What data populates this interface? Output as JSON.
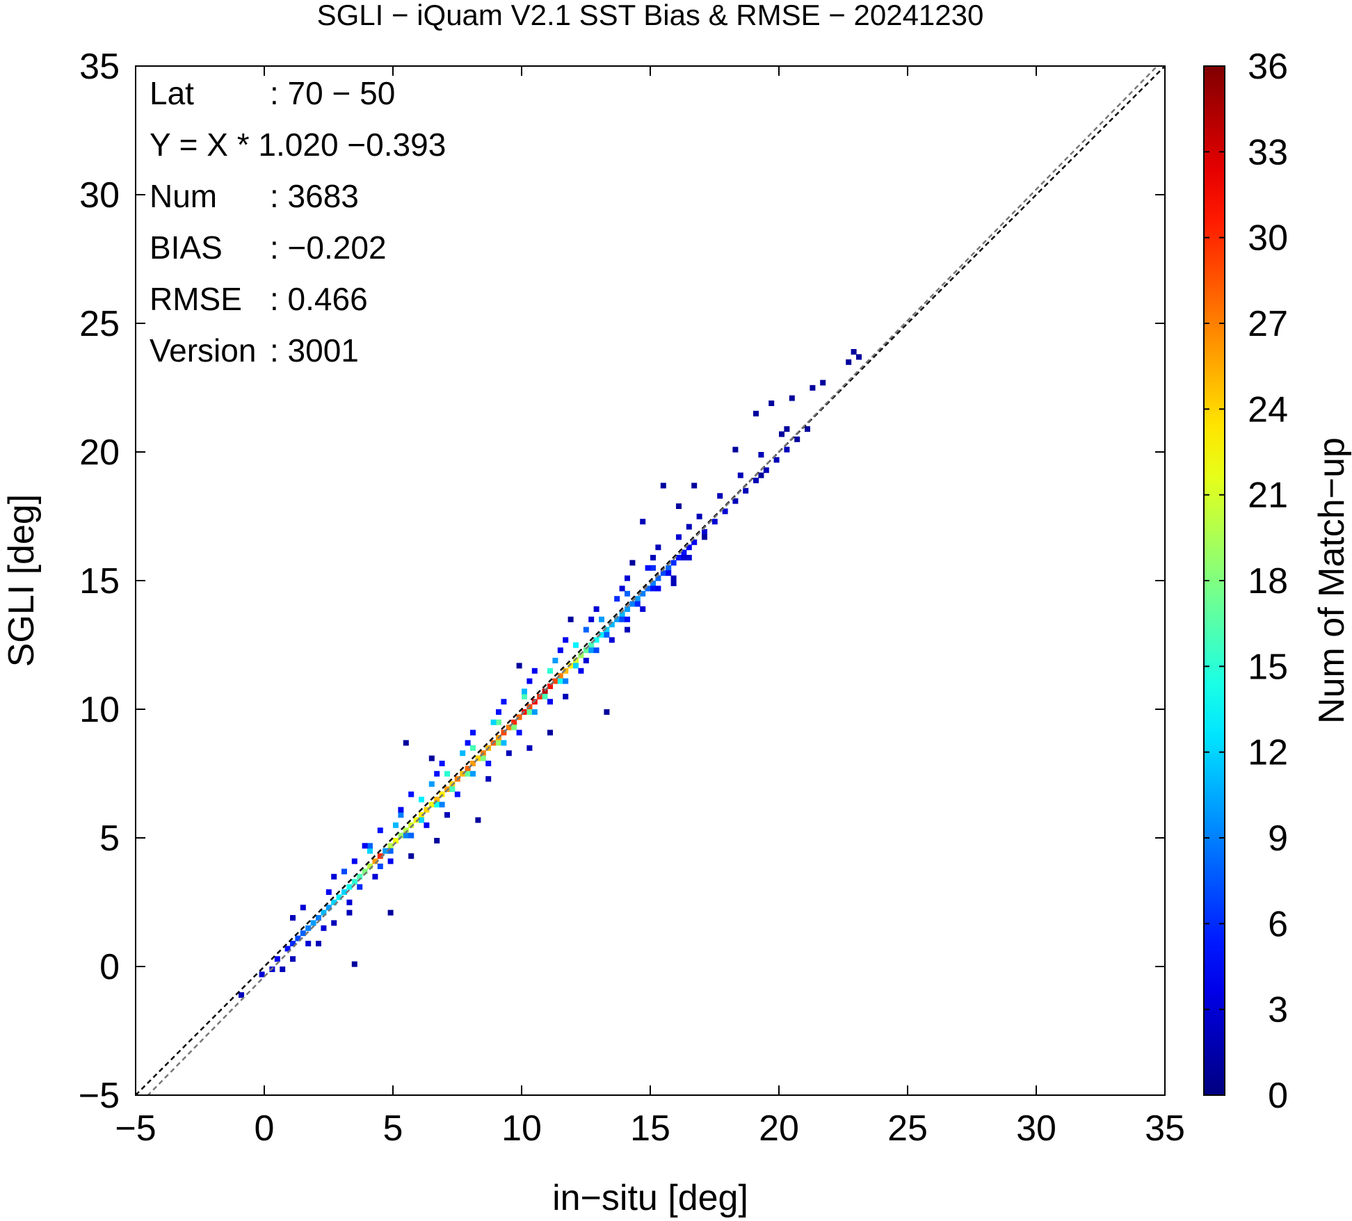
{
  "chart_data": {
    "type": "heatmap",
    "title": "SGLI − iQuam V2.1 SST Bias & RMSE  − 20241230",
    "xlabel": "in−situ [deg]",
    "ylabel": "SGLI [deg]",
    "xlim": [
      -5,
      35
    ],
    "ylim": [
      -5,
      35
    ],
    "xticks": [
      "−5",
      "0",
      "5",
      "10",
      "15",
      "20",
      "25",
      "30",
      "35"
    ],
    "yticks": [
      "−5",
      "0",
      "5",
      "10",
      "15",
      "20",
      "25",
      "30",
      "35"
    ],
    "grid": false,
    "colorbar": {
      "label": "Num of Match−up",
      "range": [
        0,
        36
      ],
      "ticks": [
        "0",
        "3",
        "6",
        "9",
        "12",
        "15",
        "18",
        "21",
        "24",
        "27",
        "30",
        "33",
        "36"
      ],
      "colormap": "jet"
    },
    "stats": [
      {
        "key": "Lat",
        "value": ": 70 − 50"
      },
      {
        "key": "Y = X * 1.020 −0.393",
        "value": ""
      },
      {
        "key": "Num",
        "value": ": 3683"
      },
      {
        "key": "BIAS",
        "value": ": −0.202"
      },
      {
        "key": "RMSE",
        "value": ": 0.466"
      },
      {
        "key": "Version",
        "value": ": 3001"
      }
    ],
    "reference_lines": [
      {
        "name": "one-to-one",
        "slope": 1.0,
        "intercept": 0.0,
        "color": "#000000",
        "style": "dashed"
      },
      {
        "name": "regression",
        "slope": 1.02,
        "intercept": -0.393,
        "color": "#777777",
        "style": "dashed"
      }
    ],
    "bin_size": 0.2,
    "bins": [
      [
        -1.0,
        -1.2,
        2
      ],
      [
        -0.2,
        -0.4,
        3
      ],
      [
        0.2,
        -0.2,
        3
      ],
      [
        0.4,
        0.2,
        4
      ],
      [
        0.8,
        0.6,
        5
      ],
      [
        1.0,
        0.8,
        6
      ],
      [
        1.2,
        1.0,
        7
      ],
      [
        1.4,
        1.2,
        8
      ],
      [
        1.6,
        1.4,
        9
      ],
      [
        1.8,
        1.6,
        10
      ],
      [
        2.0,
        1.8,
        9
      ],
      [
        2.2,
        2.0,
        11
      ],
      [
        2.4,
        2.2,
        10
      ],
      [
        2.6,
        2.4,
        12
      ],
      [
        2.8,
        2.6,
        13
      ],
      [
        3.0,
        2.8,
        12
      ],
      [
        3.2,
        3.0,
        14
      ],
      [
        3.4,
        3.2,
        15
      ],
      [
        3.6,
        3.4,
        16
      ],
      [
        3.8,
        3.6,
        18
      ],
      [
        4.0,
        3.8,
        20
      ],
      [
        4.2,
        4.0,
        26
      ],
      [
        4.4,
        4.2,
        30
      ],
      [
        4.6,
        4.4,
        24
      ],
      [
        4.8,
        4.6,
        20
      ],
      [
        5.0,
        4.8,
        22
      ],
      [
        5.2,
        5.0,
        19
      ],
      [
        5.4,
        5.2,
        20
      ],
      [
        5.6,
        5.4,
        21
      ],
      [
        5.8,
        5.6,
        22
      ],
      [
        6.0,
        5.8,
        23
      ],
      [
        6.2,
        6.0,
        24
      ],
      [
        6.4,
        6.2,
        22
      ],
      [
        6.6,
        6.4,
        25
      ],
      [
        6.8,
        6.6,
        23
      ],
      [
        7.0,
        6.8,
        26
      ],
      [
        7.2,
        7.0,
        24
      ],
      [
        7.4,
        7.2,
        27
      ],
      [
        7.6,
        7.4,
        25
      ],
      [
        7.8,
        7.6,
        28
      ],
      [
        8.0,
        7.8,
        26
      ],
      [
        8.2,
        8.0,
        24
      ],
      [
        8.4,
        8.2,
        27
      ],
      [
        8.6,
        8.4,
        25
      ],
      [
        8.8,
        8.6,
        28
      ],
      [
        9.0,
        8.8,
        26
      ],
      [
        9.2,
        9.0,
        29
      ],
      [
        9.4,
        9.2,
        27
      ],
      [
        9.6,
        9.4,
        30
      ],
      [
        9.8,
        9.6,
        28
      ],
      [
        10.0,
        9.8,
        31
      ],
      [
        10.2,
        10.0,
        29
      ],
      [
        10.4,
        10.2,
        32
      ],
      [
        10.6,
        10.4,
        30
      ],
      [
        10.8,
        10.6,
        34
      ],
      [
        11.0,
        10.8,
        31
      ],
      [
        11.2,
        11.0,
        29
      ],
      [
        11.4,
        11.2,
        27
      ],
      [
        11.6,
        11.4,
        25
      ],
      [
        11.8,
        11.6,
        23
      ],
      [
        12.0,
        11.8,
        21
      ],
      [
        12.2,
        12.0,
        19
      ],
      [
        12.4,
        12.2,
        17
      ],
      [
        12.6,
        12.4,
        16
      ],
      [
        12.8,
        12.6,
        14
      ],
      [
        13.0,
        12.8,
        13
      ],
      [
        13.2,
        13.0,
        12
      ],
      [
        13.4,
        13.2,
        11
      ],
      [
        13.6,
        13.4,
        10
      ],
      [
        13.8,
        13.6,
        11
      ],
      [
        14.0,
        13.8,
        10
      ],
      [
        14.2,
        14.0,
        9
      ],
      [
        14.4,
        14.2,
        10
      ],
      [
        14.6,
        14.4,
        9
      ],
      [
        14.8,
        14.6,
        8
      ],
      [
        15.0,
        14.8,
        9
      ],
      [
        15.2,
        15.0,
        8
      ],
      [
        15.4,
        15.2,
        7
      ],
      [
        15.6,
        15.4,
        8
      ],
      [
        15.8,
        15.6,
        6
      ],
      [
        16.0,
        15.8,
        5
      ],
      [
        16.2,
        16.0,
        5
      ],
      [
        16.4,
        16.2,
        4
      ],
      [
        16.6,
        16.4,
        4
      ],
      [
        17.0,
        16.8,
        3
      ],
      [
        17.4,
        17.2,
        3
      ],
      [
        17.8,
        17.6,
        3
      ],
      [
        18.2,
        18.0,
        2
      ],
      [
        18.6,
        18.4,
        2
      ],
      [
        19.0,
        18.8,
        2
      ],
      [
        19.4,
        19.2,
        2
      ],
      [
        19.8,
        19.6,
        2
      ],
      [
        20.2,
        20.0,
        2
      ],
      [
        20.6,
        20.4,
        1
      ],
      [
        21.0,
        20.8,
        1
      ],
      [
        4.6,
        4.4,
        10
      ],
      [
        4.8,
        4.4,
        8
      ],
      [
        5.4,
        5.0,
        9
      ],
      [
        6.0,
        5.6,
        12
      ],
      [
        6.6,
        6.2,
        14
      ],
      [
        7.2,
        6.8,
        16
      ],
      [
        7.8,
        7.4,
        17
      ],
      [
        8.4,
        8.0,
        18
      ],
      [
        9.0,
        8.6,
        19
      ],
      [
        9.6,
        9.2,
        18
      ],
      [
        10.2,
        9.8,
        17
      ],
      [
        10.8,
        10.4,
        16
      ],
      [
        11.4,
        11.0,
        14
      ],
      [
        12.0,
        11.6,
        12
      ],
      [
        12.6,
        12.2,
        10
      ],
      [
        13.2,
        12.8,
        8
      ],
      [
        13.8,
        13.4,
        7
      ],
      [
        14.4,
        14.0,
        6
      ],
      [
        15.0,
        14.6,
        5
      ],
      [
        15.6,
        15.2,
        4
      ],
      [
        16.2,
        15.8,
        3
      ],
      [
        4.0,
        4.4,
        12
      ],
      [
        5.0,
        5.4,
        11
      ],
      [
        6.0,
        6.4,
        13
      ],
      [
        7.0,
        7.4,
        15
      ],
      [
        8.0,
        8.4,
        16
      ],
      [
        9.0,
        9.4,
        17
      ],
      [
        10.0,
        10.4,
        16
      ],
      [
        11.0,
        11.4,
        15
      ],
      [
        12.0,
        12.4,
        13
      ],
      [
        13.0,
        13.4,
        10
      ],
      [
        14.0,
        14.4,
        8
      ],
      [
        15.0,
        15.4,
        6
      ],
      [
        3.6,
        3.0,
        6
      ],
      [
        4.4,
        3.8,
        7
      ],
      [
        5.6,
        5.0,
        8
      ],
      [
        6.8,
        6.2,
        9
      ],
      [
        8.0,
        7.4,
        10
      ],
      [
        9.2,
        8.6,
        11
      ],
      [
        10.4,
        9.8,
        10
      ],
      [
        11.6,
        11.0,
        9
      ],
      [
        12.8,
        12.2,
        7
      ],
      [
        14.0,
        13.4,
        5
      ],
      [
        15.2,
        14.6,
        4
      ],
      [
        16.4,
        15.8,
        3
      ],
      [
        3.0,
        3.6,
        7
      ],
      [
        4.0,
        4.6,
        8
      ],
      [
        5.2,
        5.8,
        9
      ],
      [
        6.4,
        7.0,
        10
      ],
      [
        7.6,
        8.2,
        11
      ],
      [
        8.8,
        9.4,
        12
      ],
      [
        10.0,
        10.6,
        11
      ],
      [
        11.2,
        11.8,
        10
      ],
      [
        12.4,
        13.0,
        8
      ],
      [
        13.6,
        14.2,
        6
      ],
      [
        14.8,
        15.4,
        5
      ],
      [
        16.0,
        16.6,
        3
      ],
      [
        2.2,
        1.4,
        3
      ],
      [
        3.2,
        2.4,
        3
      ],
      [
        4.8,
        4.0,
        4
      ],
      [
        6.2,
        5.4,
        4
      ],
      [
        7.4,
        6.6,
        5
      ],
      [
        8.6,
        7.8,
        5
      ],
      [
        9.8,
        9.0,
        5
      ],
      [
        11.0,
        10.2,
        4
      ],
      [
        12.2,
        11.4,
        4
      ],
      [
        13.4,
        12.6,
        3
      ],
      [
        14.6,
        13.8,
        3
      ],
      [
        15.8,
        15.0,
        2
      ],
      [
        1.4,
        2.2,
        3
      ],
      [
        2.6,
        3.4,
        3
      ],
      [
        3.8,
        4.6,
        4
      ],
      [
        5.2,
        6.0,
        4
      ],
      [
        6.6,
        7.4,
        5
      ],
      [
        7.8,
        8.6,
        5
      ],
      [
        9.0,
        9.8,
        5
      ],
      [
        10.2,
        11.0,
        4
      ],
      [
        11.4,
        12.2,
        4
      ],
      [
        12.6,
        13.4,
        3
      ],
      [
        13.8,
        14.6,
        3
      ],
      [
        15.0,
        15.8,
        2
      ],
      [
        16.8,
        17.4,
        2
      ],
      [
        17.6,
        18.2,
        2
      ],
      [
        18.4,
        19.0,
        2
      ],
      [
        19.2,
        19.8,
        2
      ],
      [
        20.0,
        20.6,
        1
      ],
      [
        1.0,
        1.8,
        2
      ],
      [
        2.6,
        1.6,
        2
      ],
      [
        3.4,
        0.0,
        1
      ],
      [
        4.8,
        2.0,
        1
      ],
      [
        5.4,
        8.6,
        1
      ],
      [
        6.4,
        8.0,
        1
      ],
      [
        8.2,
        5.6,
        1
      ],
      [
        9.8,
        11.6,
        1
      ],
      [
        10.2,
        8.4,
        2
      ],
      [
        11.0,
        9.0,
        1
      ],
      [
        11.8,
        13.4,
        1
      ],
      [
        13.2,
        9.8,
        1
      ],
      [
        14.2,
        15.6,
        1
      ],
      [
        14.6,
        17.2,
        2
      ],
      [
        15.4,
        18.6,
        1
      ],
      [
        16.0,
        17.8,
        1
      ],
      [
        16.6,
        18.6,
        1
      ],
      [
        18.2,
        20.0,
        1
      ],
      [
        19.0,
        21.4,
        1
      ],
      [
        19.6,
        21.8,
        1
      ],
      [
        20.4,
        22.0,
        1
      ],
      [
        21.2,
        22.4,
        1
      ],
      [
        21.6,
        22.6,
        1
      ],
      [
        22.8,
        23.8,
        1
      ],
      [
        22.6,
        23.4,
        1
      ],
      [
        23.0,
        23.6,
        1
      ],
      [
        20.2,
        20.8,
        1
      ],
      [
        19.2,
        19.0,
        1
      ],
      [
        17.0,
        16.6,
        1
      ],
      [
        15.8,
        14.8,
        2
      ],
      [
        14.0,
        13.0,
        2
      ],
      [
        12.4,
        11.8,
        3
      ],
      [
        11.6,
        10.4,
        2
      ],
      [
        9.4,
        8.2,
        2
      ],
      [
        8.6,
        7.2,
        2
      ],
      [
        7.0,
        5.8,
        2
      ],
      [
        6.6,
        4.8,
        1
      ],
      [
        5.6,
        4.2,
        1
      ],
      [
        4.2,
        3.4,
        3
      ],
      [
        3.2,
        2.0,
        2
      ],
      [
        2.0,
        0.8,
        2
      ],
      [
        1.0,
        0.2,
        2
      ],
      [
        0.6,
        -0.2,
        2
      ],
      [
        1.6,
        0.8,
        3
      ],
      [
        2.4,
        2.8,
        4
      ],
      [
        3.4,
        4.0,
        4
      ],
      [
        4.4,
        5.2,
        5
      ],
      [
        5.6,
        6.6,
        5
      ],
      [
        6.8,
        7.8,
        5
      ],
      [
        8.0,
        9.0,
        5
      ],
      [
        9.2,
        10.2,
        5
      ],
      [
        10.4,
        11.4,
        4
      ],
      [
        11.6,
        12.6,
        4
      ],
      [
        12.8,
        13.8,
        3
      ],
      [
        14.0,
        15.0,
        3
      ],
      [
        15.2,
        16.2,
        2
      ],
      [
        16.4,
        17.0,
        2
      ]
    ]
  }
}
